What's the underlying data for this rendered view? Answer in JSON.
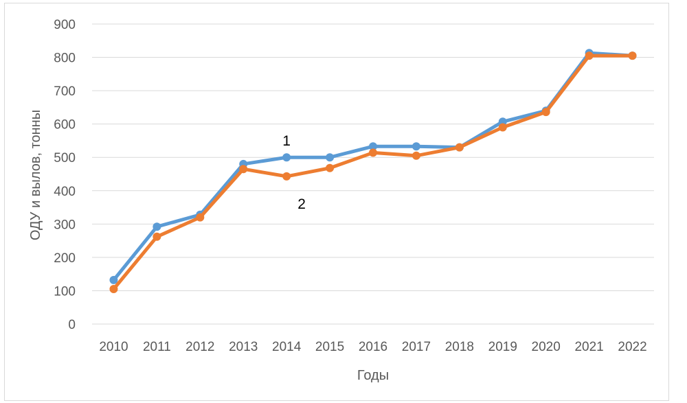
{
  "chart_data": {
    "type": "line",
    "title": "",
    "xlabel": "Годы",
    "ylabel": "ОДУ и вылов, тонны",
    "ylim": [
      0,
      900
    ],
    "yticks": [
      0,
      100,
      200,
      300,
      400,
      500,
      600,
      700,
      800,
      900
    ],
    "grid": true,
    "categories": [
      "2010",
      "2011",
      "2012",
      "2013",
      "2014",
      "2015",
      "2016",
      "2017",
      "2018",
      "2019",
      "2020",
      "2021",
      "2022"
    ],
    "series": [
      {
        "name": "1",
        "color": "#5b9bd5",
        "values": [
          132,
          292,
          328,
          480,
          500,
          500,
          533,
          533,
          530,
          607,
          640,
          813,
          805
        ]
      },
      {
        "name": "2",
        "color": "#ed7d31",
        "values": [
          105,
          262,
          320,
          465,
          443,
          468,
          514,
          505,
          530,
          590,
          636,
          805,
          805
        ]
      }
    ]
  }
}
